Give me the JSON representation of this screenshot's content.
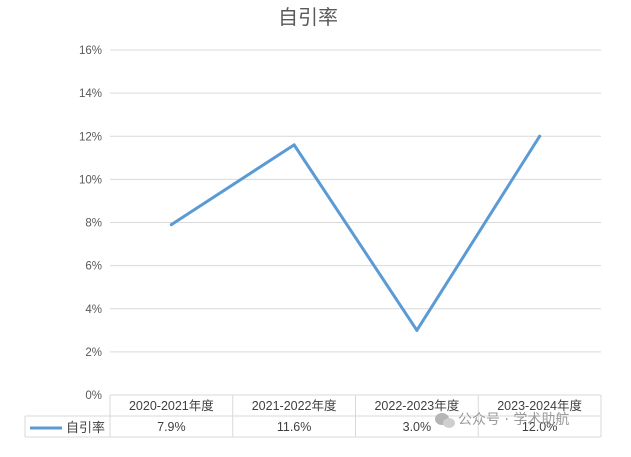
{
  "chart_data": {
    "type": "line",
    "title": "自引率",
    "categories": [
      "2020-2021年度",
      "2021-2022年度",
      "2022-2023年度",
      "2023-2024年度"
    ],
    "series": [
      {
        "name": "自引率",
        "values": [
          7.9,
          11.6,
          3.0,
          12.0
        ],
        "labels": [
          "7.9%",
          "11.6%",
          "3.0%",
          "12.0%"
        ],
        "color": "#5b9bd5"
      }
    ],
    "y_ticks": [
      "0%",
      "2%",
      "4%",
      "6%",
      "8%",
      "10%",
      "12%",
      "14%",
      "16%"
    ],
    "ylim": [
      0,
      16
    ],
    "y_unit": "%",
    "grid": true,
    "legend": "data-table-left",
    "data_table": true
  },
  "watermark": {
    "icon": "wechat-icon",
    "text": "公众号 · 学术助航"
  }
}
